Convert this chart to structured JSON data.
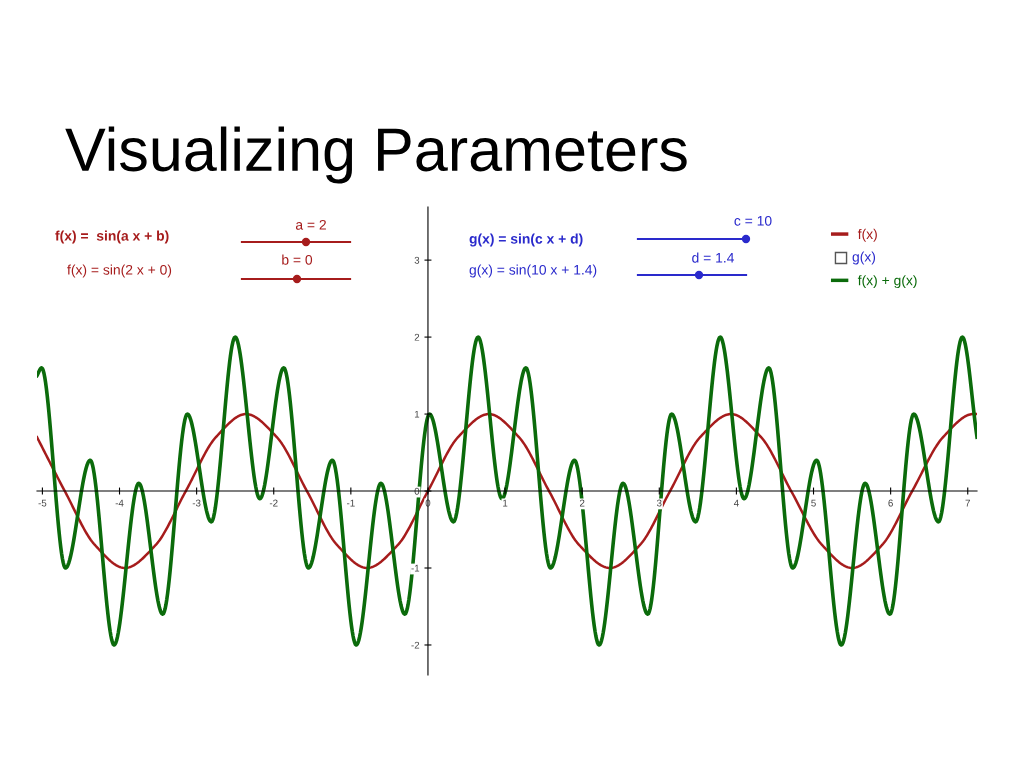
{
  "chart_data": {
    "type": "line",
    "title": "Visualizing Parameters",
    "xlim": [
      -5.07,
      7.12
    ],
    "ylim": [
      -2.39,
      3.69
    ],
    "xticks": [
      -5,
      -4,
      -3,
      -2,
      -1,
      0,
      1,
      2,
      3,
      4,
      5,
      6,
      7
    ],
    "yticks": [
      -2,
      -1,
      0,
      1,
      2,
      3
    ],
    "grid": false,
    "legend": "top right",
    "annotations": [
      "f(x) =  sin(a x + b)",
      "a = 2",
      "b = 0",
      "f(x) = sin(2 x + 0)",
      "g(x) = sin(c x + d)",
      "c = 10",
      "d = 1.4",
      "g(x) = sin(10 x + 1.4)",
      "g(x)"
    ],
    "series": [
      {
        "name": "f(x)",
        "color": "#a61c1c",
        "x": [
          -5.07,
          -4.71,
          -4.32,
          -3.93,
          -3.53,
          -3.14,
          -2.75,
          -2.36,
          -1.96,
          -1.57,
          -1.18,
          -0.79,
          -0.39,
          0,
          0.39,
          0.79,
          1.18,
          1.57,
          1.96,
          2.36,
          2.75,
          3.14,
          3.53,
          3.93,
          4.32,
          4.71,
          5.11,
          5.5,
          5.89,
          6.28,
          6.68,
          7.07,
          7.12
        ],
        "values": [
          0.7,
          0,
          -0.7,
          -1,
          -0.7,
          0,
          0.7,
          1,
          0.7,
          0,
          -0.7,
          -1,
          -0.7,
          0,
          0.7,
          1,
          0.7,
          0,
          -0.7,
          -1,
          -0.7,
          0,
          0.7,
          1,
          0.7,
          0,
          -0.7,
          -1,
          -0.7,
          0,
          0.7,
          1,
          1
        ]
      },
      {
        "name": "f(x) + g(x)",
        "color": "#0b6b0b",
        "x": [
          -5.07,
          -5.01,
          -4.7,
          -4.38,
          -4.07,
          -3.75,
          -3.44,
          -3.12,
          -2.81,
          -2.5,
          -2.18,
          -1.87,
          -1.55,
          -1.24,
          -0.93,
          -0.61,
          -0.3,
          0.02,
          0.33,
          0.65,
          0.96,
          1.27,
          1.59,
          1.9,
          2.22,
          2.53,
          2.85,
          3.16,
          3.47,
          3.79,
          4.1,
          4.42,
          4.73,
          5.04,
          5.36,
          5.67,
          5.99,
          6.3,
          6.62,
          6.93,
          7.12
        ],
        "values": [
          1.5,
          1.6,
          -1,
          0.4,
          -2,
          0.1,
          -1.6,
          1,
          -0.4,
          2,
          -0.1,
          1.6,
          -1,
          0.4,
          -2,
          0.1,
          -1.6,
          1,
          -0.4,
          2,
          -0.1,
          1.6,
          -1,
          0.4,
          -2,
          0.1,
          -1.6,
          1,
          -0.4,
          2,
          -0.1,
          1.6,
          -1,
          0.4,
          -2,
          0.1,
          -1.6,
          1,
          -0.4,
          2,
          0.7
        ]
      }
    ]
  }
}
